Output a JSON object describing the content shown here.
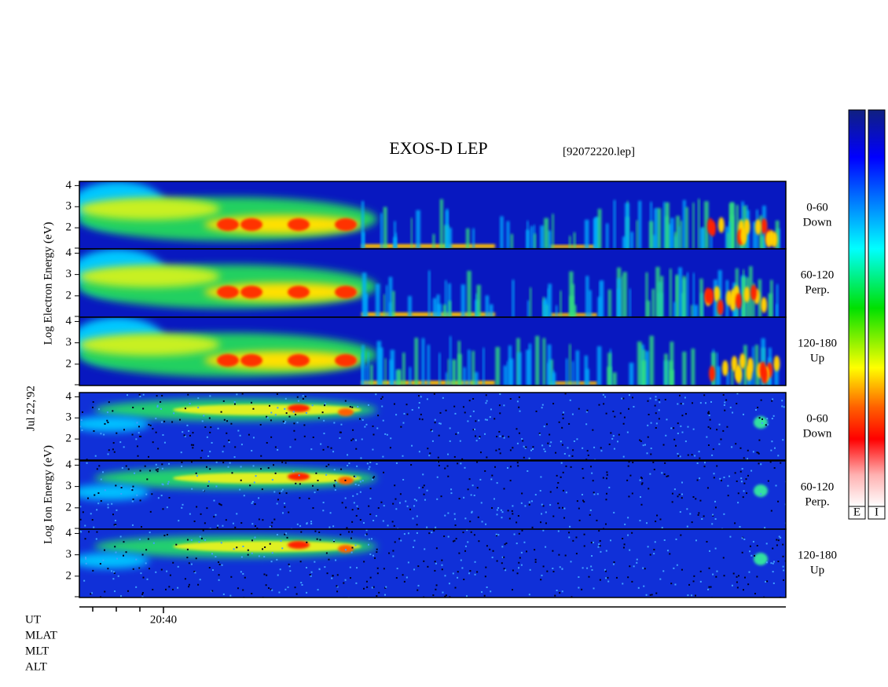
{
  "header": {
    "title": "EXOS-D LEP",
    "file": "[92072220.lep]"
  },
  "date": "Jul 22,'92",
  "groups": [
    {
      "ylabel": "Log Electron Energy (eV)",
      "panels": [
        {
          "angle": "0-60",
          "direction": "Down"
        },
        {
          "angle": "60-120",
          "direction": "Perp."
        },
        {
          "angle": "120-180",
          "direction": "Up"
        }
      ]
    },
    {
      "ylabel": "Log Ion Energy (eV)",
      "panels": [
        {
          "angle": "0-60",
          "direction": "Down"
        },
        {
          "angle": "60-120",
          "direction": "Perp."
        },
        {
          "angle": "120-180",
          "direction": "Up"
        }
      ]
    }
  ],
  "axis": {
    "ylim": [
      1,
      4.2
    ],
    "yticks": [
      2,
      3,
      4
    ],
    "xtick": "20:40"
  },
  "rows": [
    "UT",
    "MLAT",
    "MLT",
    "ALT"
  ],
  "colorbars": [
    "E",
    "I"
  ]
}
